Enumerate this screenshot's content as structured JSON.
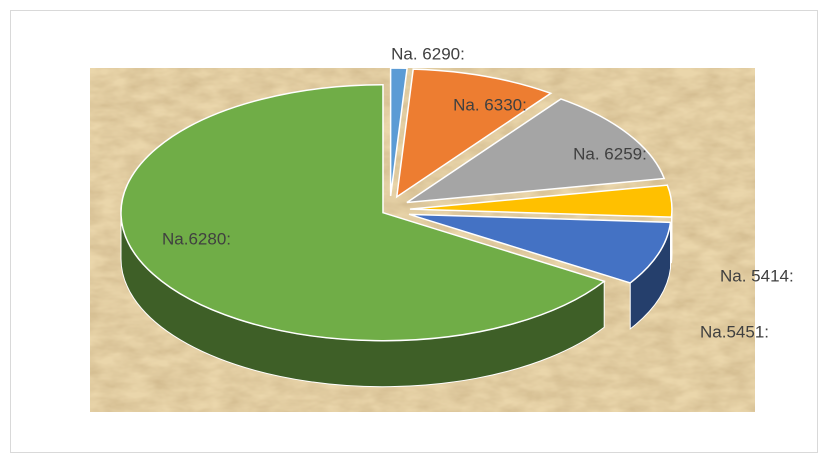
{
  "chart_data": {
    "type": "pie",
    "categories": [
      "Na. 6290:",
      "Na. 6330:",
      "Na. 6259:",
      "Na. 5414:",
      "Na.5451:",
      "Na.6280:"
    ],
    "values": [
      1,
      9,
      12,
      4,
      8,
      66
    ],
    "colors": [
      "#5b9bd5",
      "#ed7d31",
      "#a5a5a5",
      "#ffc000",
      "#4472c4",
      "#70ad47"
    ]
  }
}
